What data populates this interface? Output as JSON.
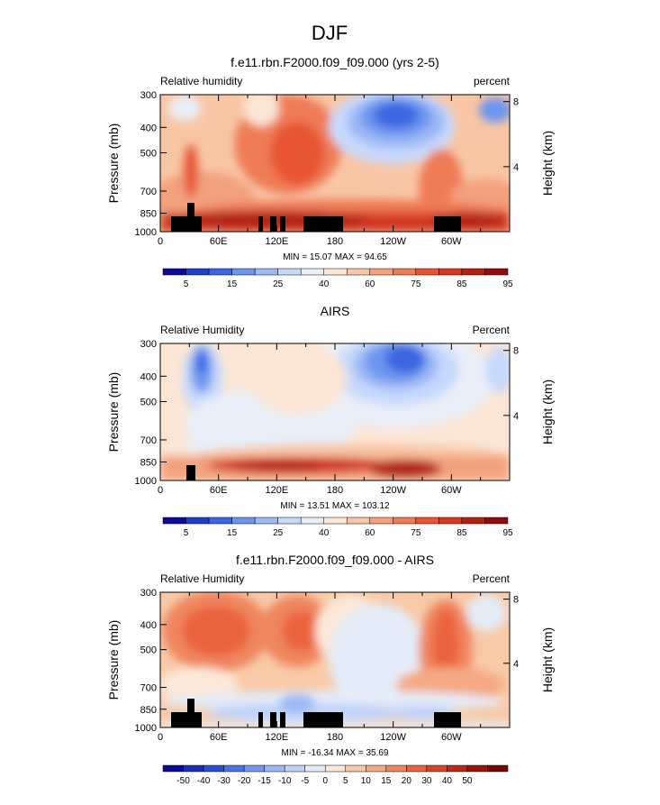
{
  "page": {
    "title": "DJF"
  },
  "colors": {
    "rh": [
      "#0a0a9c",
      "#1f3fc6",
      "#3a66e0",
      "#6d95ee",
      "#9dbaf6",
      "#c7d9fb",
      "#e9eff8",
      "#fbe6d5",
      "#f8c6a5",
      "#f3a27d",
      "#ef7c56",
      "#e75532",
      "#d23920",
      "#b12215",
      "#8c0e0b"
    ],
    "diff": [
      "#0a0a9c",
      "#1a2fb5",
      "#2a4fd0",
      "#4a74e6",
      "#7299ef",
      "#9ab8f6",
      "#bfd3fb",
      "#e4ecf8",
      "#fbe8d8",
      "#f8caa8",
      "#f4a983",
      "#ef865e",
      "#e9633d",
      "#d94425",
      "#bb2a16",
      "#971509",
      "#730803"
    ]
  },
  "panels": [
    {
      "id": "model",
      "title": "f.e11.rbn.F2000.f09_f09.000 (yrs 2-5)",
      "left_label": "Relative humidity",
      "right_label": "percent",
      "stats": "MIN = 15.07  MAX = 94.65",
      "ylabel": "Pressure (mb)",
      "y2label": "Height (km)",
      "colorbar_labels": [
        "5",
        "15",
        "25",
        "40",
        "60",
        "75",
        "85",
        "95"
      ]
    },
    {
      "id": "airs",
      "title": "AIRS",
      "left_label": "Relative Humidity",
      "right_label": "Percent",
      "stats": "MIN = 13.51  MAX = 103.12",
      "ylabel": "Pressure (mb)",
      "y2label": "Height (km)",
      "colorbar_labels": [
        "5",
        "15",
        "25",
        "40",
        "60",
        "75",
        "85",
        "95"
      ]
    },
    {
      "id": "diff",
      "title": "f.e11.rbn.F2000.f09_f09.000 - AIRS",
      "left_label": "Relative Humidity",
      "right_label": "Percent",
      "stats": "MIN = -16.34  MAX = 35.69",
      "ylabel": "Pressure (mb)",
      "y2label": "Height (km)",
      "colorbar_labels": [
        "-50",
        "-40",
        "-30",
        "-20",
        "-15",
        "-10",
        "-5",
        "0",
        "5",
        "10",
        "15",
        "20",
        "30",
        "40",
        "50"
      ]
    }
  ],
  "chart_data": [
    {
      "type": "heatmap",
      "panel": "model",
      "x_ticks": [
        "0",
        "60E",
        "120E",
        "180",
        "120W",
        "60W"
      ],
      "x_tick_lon": [
        0,
        60,
        120,
        180,
        240,
        300
      ],
      "xlim": [
        0,
        360
      ],
      "y_ticks": [
        "300",
        "400",
        "500",
        "700",
        "850",
        "1000"
      ],
      "y_tick_p": [
        300,
        400,
        500,
        700,
        850,
        1000
      ],
      "ylim": [
        1000,
        300
      ],
      "y2_ticks": [
        "8",
        "4"
      ],
      "y2_tick_km": [
        8,
        4
      ],
      "min": 15.07,
      "max": 94.65,
      "levels": [
        5,
        10,
        15,
        20,
        25,
        30,
        40,
        50,
        60,
        65,
        75,
        80,
        85,
        90,
        95
      ]
    },
    {
      "type": "heatmap",
      "panel": "airs",
      "x_ticks": [
        "0",
        "60E",
        "120E",
        "180",
        "120W",
        "60W"
      ],
      "x_tick_lon": [
        0,
        60,
        120,
        180,
        240,
        300
      ],
      "xlim": [
        0,
        360
      ],
      "y_ticks": [
        "300",
        "400",
        "500",
        "700",
        "850",
        "1000"
      ],
      "y_tick_p": [
        300,
        400,
        500,
        700,
        850,
        1000
      ],
      "ylim": [
        1000,
        300
      ],
      "y2_ticks": [
        "8",
        "4"
      ],
      "y2_tick_km": [
        8,
        4
      ],
      "min": 13.51,
      "max": 103.12,
      "levels": [
        5,
        10,
        15,
        20,
        25,
        30,
        40,
        50,
        60,
        65,
        75,
        80,
        85,
        90,
        95
      ]
    },
    {
      "type": "heatmap",
      "panel": "diff",
      "x_ticks": [
        "0",
        "60E",
        "120E",
        "180",
        "120W",
        "60W"
      ],
      "x_tick_lon": [
        0,
        60,
        120,
        180,
        240,
        300
      ],
      "xlim": [
        0,
        360
      ],
      "y_ticks": [
        "300",
        "400",
        "500",
        "700",
        "850",
        "1000"
      ],
      "y_tick_p": [
        300,
        400,
        500,
        700,
        850,
        1000
      ],
      "ylim": [
        1000,
        300
      ],
      "y2_ticks": [
        "8",
        "4"
      ],
      "y2_tick_km": [
        8,
        4
      ],
      "min": -16.34,
      "max": 35.69,
      "levels": [
        -50,
        -40,
        -30,
        -20,
        -15,
        -10,
        -5,
        0,
        5,
        10,
        15,
        20,
        30,
        40,
        50
      ]
    }
  ]
}
